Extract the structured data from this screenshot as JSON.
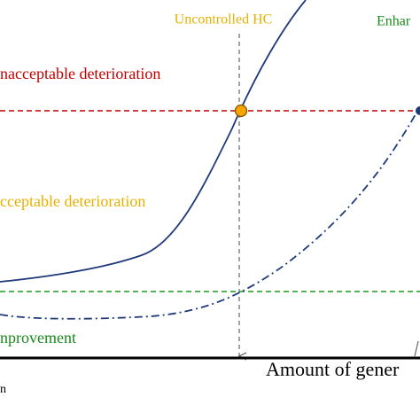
{
  "labels": {
    "uncontrolled": "Uncontrolled HC",
    "enhanced": "Enhar",
    "unacceptable": "nacceptable deterioration",
    "acceptable": "cceptable deterioration",
    "improvement": "nprovement",
    "x_axis": "Amount of gener",
    "corner": "n"
  }
}
